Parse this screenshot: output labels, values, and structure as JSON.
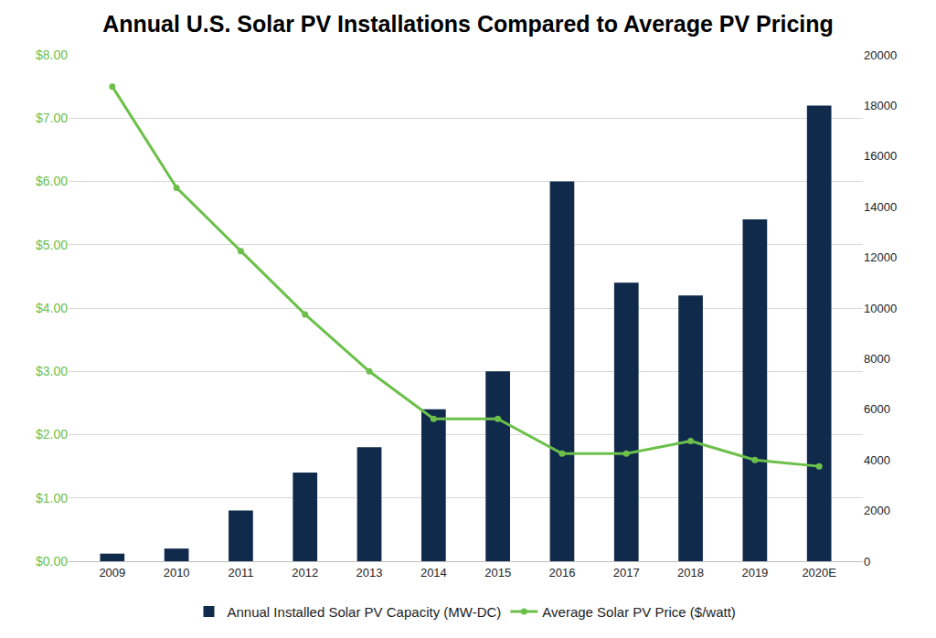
{
  "chart_data": {
    "type": "bar",
    "title": "Annual U.S. Solar PV Installations Compared to Average PV Pricing",
    "categories": [
      "2009",
      "2010",
      "2011",
      "2012",
      "2013",
      "2014",
      "2015",
      "2016",
      "2017",
      "2018",
      "2019",
      "2020E"
    ],
    "series": [
      {
        "name": "Annual Installed Solar PV Capacity (MW-DC)",
        "type": "bar",
        "color": "#102a4c",
        "axis": "y2",
        "values": [
          300,
          500,
          2000,
          3500,
          4500,
          6000,
          7500,
          15000,
          11000,
          10500,
          13500,
          18000
        ]
      },
      {
        "name": "Average Solar PV Price ($/watt)",
        "type": "line",
        "color": "#6cc04a",
        "marker": "circle",
        "values": [
          7.5,
          5.9,
          4.9,
          3.9,
          3.0,
          2.25,
          2.25,
          1.7,
          1.7,
          1.9,
          1.6,
          1.5
        ]
      }
    ],
    "ylim": [
      0,
      8
    ],
    "yticks": [
      {
        "value": 0,
        "label": "$0.00"
      },
      {
        "value": 1,
        "label": "$1.00"
      },
      {
        "value": 2,
        "label": "$2.00"
      },
      {
        "value": 3,
        "label": "$3.00"
      },
      {
        "value": 4,
        "label": "$4.00"
      },
      {
        "value": 5,
        "label": "$5.00"
      },
      {
        "value": 6,
        "label": "$6.00"
      },
      {
        "value": 7,
        "label": "$7.00"
      },
      {
        "value": 8,
        "label": "$8.00"
      }
    ],
    "y2lim": [
      0,
      20000
    ],
    "y2ticks": [
      0,
      2000,
      4000,
      6000,
      8000,
      10000,
      12000,
      14000,
      16000,
      18000,
      20000
    ],
    "grid": true,
    "legend": "bottom"
  }
}
